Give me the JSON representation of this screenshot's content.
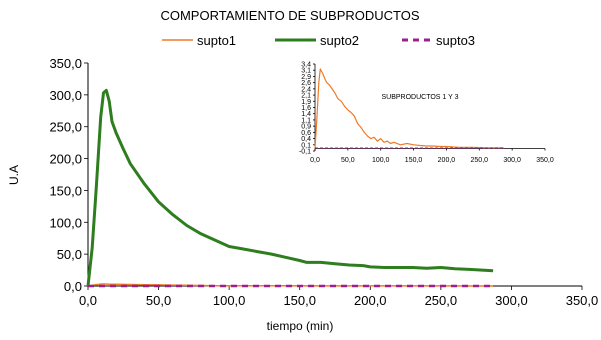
{
  "chart_data": [
    {
      "type": "line",
      "title": "COMPORTAMIENTO DE SUBPRODUCTOS",
      "xlabel": "tiempo (min)",
      "ylabel": "U.A",
      "xlim": [
        0,
        350
      ],
      "ylim": [
        0,
        350
      ],
      "x_ticks": [
        "0,0",
        "50,0",
        "100,0",
        "150,0",
        "200,0",
        "250,0",
        "300,0",
        "350,0"
      ],
      "y_ticks": [
        "0,0",
        "50,0",
        "100,0",
        "150,0",
        "200,0",
        "250,0",
        "300,0",
        "350,0"
      ],
      "legend_position": "top",
      "grid": false,
      "series": [
        {
          "name": "supto1",
          "color": "#f07a28",
          "style": "solid",
          "x": [
            0,
            3,
            6,
            10,
            12,
            15,
            20,
            30,
            40,
            50,
            60,
            70,
            80,
            90,
            100,
            110,
            120,
            140,
            160,
            180,
            200,
            220,
            250,
            287
          ],
          "y": [
            0,
            1.0,
            2.2,
            3.2,
            3.1,
            2.9,
            2.7,
            2.4,
            2.1,
            1.8,
            1.4,
            1.1,
            0.8,
            0.5,
            0.4,
            0.35,
            0.3,
            0.25,
            0.2,
            0.15,
            0.12,
            0.1,
            0.08,
            0.05
          ]
        },
        {
          "name": "supto2",
          "color": "#2e7d1f",
          "style": "solid",
          "x": [
            0,
            3,
            6,
            9,
            11,
            13,
            15,
            17,
            20,
            25,
            30,
            40,
            50,
            60,
            70,
            80,
            90,
            100,
            110,
            120,
            130,
            140,
            150,
            155,
            165,
            175,
            185,
            195,
            200,
            210,
            220,
            230,
            240,
            250,
            260,
            270,
            287
          ],
          "y": [
            0,
            60,
            160,
            265,
            303,
            307,
            290,
            258,
            240,
            215,
            192,
            160,
            132,
            112,
            95,
            82,
            72,
            62,
            58,
            54,
            50,
            45,
            40,
            37,
            37,
            35,
            33,
            32,
            30,
            29,
            29,
            29,
            28,
            29,
            27,
            26,
            24
          ]
        },
        {
          "name": "supto3",
          "color": "#9b1f8c",
          "style": "dashed",
          "x": [
            0,
            287
          ],
          "y": [
            0.05,
            0.05
          ]
        }
      ]
    },
    {
      "type": "line",
      "title": "SUBPRODUCTOS 1  Y  3",
      "xlim": [
        0,
        350
      ],
      "ylim": [
        -0.1,
        3.4
      ],
      "x_ticks": [
        "0,0",
        "50,0",
        "100,0",
        "150,0",
        "200,0",
        "250,0",
        "300,0",
        "350,0"
      ],
      "y_ticks": [
        "-0,1",
        "0,1",
        "0,4",
        "0,6",
        "0,9",
        "1,1",
        "1,4",
        "1,6",
        "1,9",
        "2,1",
        "2,4",
        "2,6",
        "2,9",
        "3,1",
        "3,4"
      ],
      "series": [
        {
          "name": "supto1",
          "color": "#f07a28",
          "style": "solid",
          "x": [
            0,
            3,
            6,
            8,
            10,
            12,
            15,
            18,
            22,
            26,
            30,
            35,
            40,
            45,
            50,
            55,
            60,
            65,
            70,
            75,
            80,
            85,
            90,
            95,
            100,
            105,
            110,
            115,
            120,
            130,
            140,
            150,
            160,
            170,
            180,
            190,
            200,
            220,
            240,
            260,
            287
          ],
          "y": [
            0,
            1.3,
            2.7,
            3.2,
            3.1,
            3.0,
            2.8,
            2.65,
            2.55,
            2.4,
            2.25,
            2.0,
            1.9,
            1.7,
            1.55,
            1.45,
            1.3,
            1.0,
            0.85,
            0.65,
            0.5,
            0.4,
            0.45,
            0.3,
            0.4,
            0.25,
            0.3,
            0.2,
            0.25,
            0.15,
            0.2,
            0.15,
            0.12,
            0.1,
            0.1,
            0.08,
            0.08,
            0.05,
            0.05,
            0.03,
            0.03
          ]
        },
        {
          "name": "supto3",
          "color": "#9b1f8c",
          "style": "dashed",
          "x": [
            0,
            287
          ],
          "y": [
            0.02,
            0.02
          ]
        }
      ]
    }
  ]
}
